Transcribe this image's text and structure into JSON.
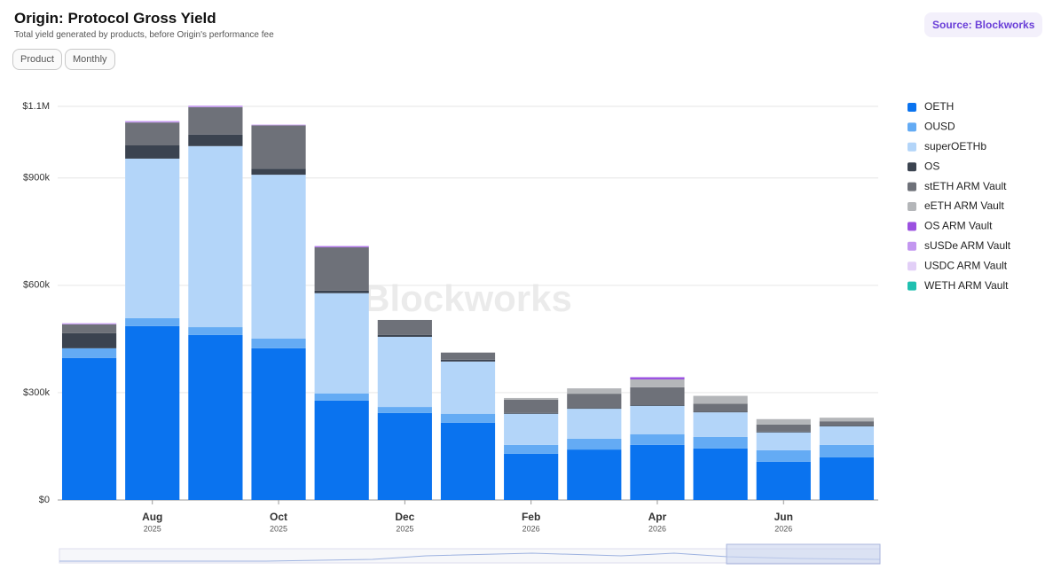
{
  "chart_data": {
    "type": "bar",
    "stacked": true,
    "title": "Origin: Protocol Gross Yield",
    "subtitle": "Total yield generated by products, before Origin's performance fee",
    "filters": [
      "Product",
      "Monthly"
    ],
    "source": "Source: Blockworks",
    "watermark": "Blockworks",
    "categories": [
      null,
      "Aug",
      null,
      "Oct",
      null,
      "Dec",
      null,
      "Feb",
      null,
      "Apr",
      null,
      "Jun",
      null
    ],
    "category_years": [
      null,
      "2025",
      null,
      "2025",
      null,
      "2025",
      null,
      "2026",
      null,
      "2026",
      null,
      "2026",
      null
    ],
    "ylim": [
      0,
      1100000
    ],
    "yticks": [
      {
        "value": 0,
        "label": "$0"
      },
      {
        "value": 300000,
        "label": "$300k"
      },
      {
        "value": 600000,
        "label": "$600k"
      },
      {
        "value": 900000,
        "label": "$900k"
      },
      {
        "value": 1100000,
        "label": "$1.1M"
      }
    ],
    "grid": true,
    "legend": "right",
    "series": [
      {
        "name": "OETH",
        "color": "#0a73ef",
        "values": [
          397000,
          486000,
          461000,
          424000,
          278000,
          243000,
          216000,
          129000,
          141000,
          154000,
          144000,
          107000,
          119000
        ]
      },
      {
        "name": "OUSD",
        "color": "#64abf4",
        "values": [
          27000,
          22000,
          22000,
          27000,
          20000,
          17000,
          25000,
          25000,
          30000,
          30000,
          32000,
          32000,
          35000
        ]
      },
      {
        "name": "superOETHb",
        "color": "#b3d5f9",
        "values": [
          0,
          446000,
          506000,
          458000,
          280000,
          196000,
          146000,
          87000,
          84000,
          79000,
          69000,
          50000,
          52000
        ]
      },
      {
        "name": "OS",
        "color": "#3b4350",
        "values": [
          42000,
          37000,
          32000,
          17000,
          7000,
          5000,
          5000,
          2000,
          2000,
          2000,
          2000,
          2000,
          2000
        ]
      },
      {
        "name": "stETH ARM Vault",
        "color": "#6e7179",
        "values": [
          25000,
          64000,
          77000,
          121000,
          121000,
          42000,
          20000,
          37000,
          40000,
          50000,
          22000,
          20000,
          12000
        ]
      },
      {
        "name": "eETH ARM Vault",
        "color": "#b4b6b9",
        "values": [
          0,
          0,
          0,
          0,
          0,
          0,
          0,
          5000,
          15000,
          22000,
          22000,
          15000,
          10000
        ]
      },
      {
        "name": "OS ARM Vault",
        "color": "#9b51e0",
        "values": [
          0,
          0,
          0,
          0,
          2000,
          0,
          0,
          0,
          0,
          5000,
          0,
          0,
          0
        ]
      },
      {
        "name": "sUSDe ARM Vault",
        "color": "#c397f0",
        "values": [
          3000,
          4000,
          4000,
          2000,
          2000,
          0,
          0,
          0,
          0,
          2000,
          0,
          0,
          0
        ]
      },
      {
        "name": "USDC ARM Vault",
        "color": "#e2cff7",
        "values": [
          0,
          0,
          0,
          0,
          0,
          0,
          0,
          0,
          0,
          0,
          0,
          0,
          0
        ]
      },
      {
        "name": "WETH ARM Vault",
        "color": "#20c0b0",
        "values": [
          0,
          0,
          0,
          0,
          0,
          0,
          0,
          0,
          0,
          0,
          0,
          0,
          0
        ]
      }
    ]
  }
}
